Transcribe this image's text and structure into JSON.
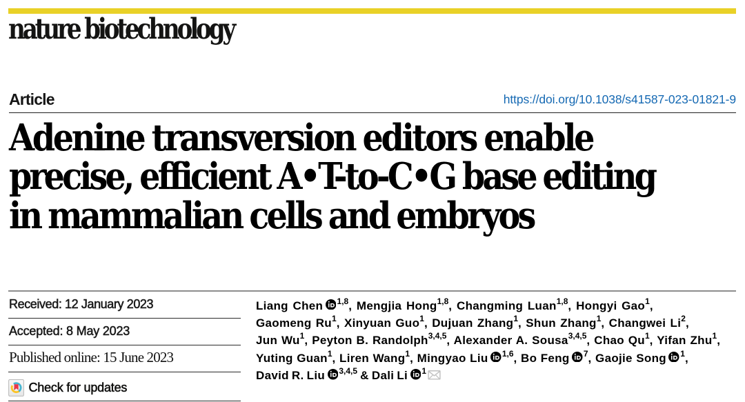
{
  "brand": {
    "wordmark": "nature biotechnology",
    "bar_color": "#e9d127"
  },
  "header": {
    "article_label": "Article",
    "doi_link": "https://doi.org/10.1038/s41587-023-01821-9",
    "doi_color": "#1569b3"
  },
  "title": {
    "lines": [
      "Adenine transversion editors enable",
      "precise, efficient A•T-to-C•G base editing",
      "in mammalian cells and embryos"
    ]
  },
  "dates": {
    "received": "Received: 12 January 2023",
    "accepted": "Accepted: 8 May 2023",
    "published": "Published online: 15 June 2023"
  },
  "check_for_updates": {
    "label": "Check for updates",
    "icon": "crossmark-icon",
    "icon_colors": {
      "blue": "#45b4cf",
      "yellow": "#fcc425",
      "red": "#e8374a"
    }
  },
  "authors": {
    "orcid_icon": "orcid-icon",
    "email_icon": "envelope-icon",
    "lines": [
      [
        {
          "name": "Liang Chen",
          "orcid": true,
          "sup": "1,8",
          "sep": ", "
        },
        {
          "name": "Mengjia Hong",
          "sup": "1,8",
          "sep": ", "
        },
        {
          "name": "Changming Luan",
          "sup": "1,8",
          "sep": ", "
        },
        {
          "name": "Hongyi Gao",
          "sup": "1",
          "sep": ","
        }
      ],
      [
        {
          "name": "Gaomeng Ru",
          "sup": "1",
          "sep": ", "
        },
        {
          "name": "Xinyuan Guo",
          "sup": "1",
          "sep": ", "
        },
        {
          "name": "Dujuan Zhang",
          "sup": "1",
          "sep": ", "
        },
        {
          "name": "Shun Zhang",
          "sup": "1",
          "sep": ", "
        },
        {
          "name": "Changwei Li",
          "sup": "2",
          "sep": ","
        }
      ],
      [
        {
          "name": "Jun Wu",
          "sup": "1",
          "sep": ", "
        },
        {
          "name": "Peyton B. Randolph",
          "sup": "3,4,5",
          "sep": ", "
        },
        {
          "name": "Alexander A. Sousa",
          "sup": "3,4,5",
          "sep": ", "
        },
        {
          "name": "Chao Qu",
          "sup": "1",
          "sep": ", "
        },
        {
          "name": "Yifan Zhu",
          "sup": "1",
          "sep": ","
        }
      ],
      [
        {
          "name": "Yuting Guan",
          "sup": "1",
          "sep": ", "
        },
        {
          "name": "Liren Wang",
          "sup": "1",
          "sep": ", "
        },
        {
          "name": "Mingyao Liu",
          "orcid": true,
          "sup": "1,6",
          "sep": ", "
        },
        {
          "name": "Bo Feng",
          "orcid": true,
          "sup": "7",
          "sep": ", "
        },
        {
          "name": "Gaojie Song",
          "orcid": true,
          "sup": "1",
          "sep": ","
        }
      ],
      [
        {
          "name": "David R. Liu",
          "orcid": true,
          "sup": "3,4,5",
          "sep": " & "
        },
        {
          "name": "Dali Li",
          "orcid": true,
          "sup": "1",
          "envelope": true
        }
      ]
    ]
  }
}
